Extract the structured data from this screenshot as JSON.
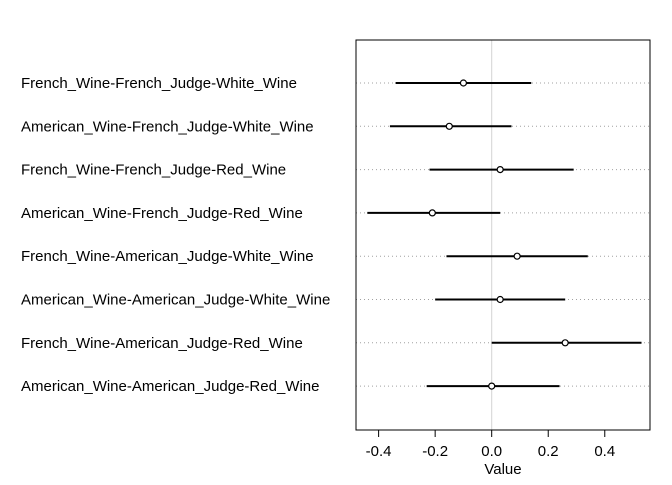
{
  "chart_data": {
    "type": "scatter",
    "subtype": "interval-dot-plot",
    "title": "",
    "xlabel": "Value",
    "ylabel": "",
    "xlim": [
      -0.48,
      0.56
    ],
    "xticks": [
      -0.4,
      -0.2,
      0.0,
      0.2,
      0.4
    ],
    "xtick_labels": [
      "-0.4",
      "-0.2",
      "0.0",
      "0.2",
      "0.4"
    ],
    "grid": "horizontal dotted guide per row, vertical line at 0",
    "legend": "none",
    "rows": [
      {
        "label": "French_Wine-French_Judge-White_Wine",
        "estimate": -0.1,
        "lower": -0.34,
        "upper": 0.14
      },
      {
        "label": "American_Wine-French_Judge-White_Wine",
        "estimate": -0.15,
        "lower": -0.36,
        "upper": 0.07
      },
      {
        "label": "French_Wine-French_Judge-Red_Wine",
        "estimate": 0.03,
        "lower": -0.22,
        "upper": 0.29
      },
      {
        "label": "American_Wine-French_Judge-Red_Wine",
        "estimate": -0.21,
        "lower": -0.44,
        "upper": 0.03
      },
      {
        "label": "French_Wine-American_Judge-White_Wine",
        "estimate": 0.09,
        "lower": -0.16,
        "upper": 0.34
      },
      {
        "label": "American_Wine-American_Judge-White_Wine",
        "estimate": 0.03,
        "lower": -0.2,
        "upper": 0.26
      },
      {
        "label": "French_Wine-American_Judge-Red_Wine",
        "estimate": 0.26,
        "lower": 0.0,
        "upper": 0.53
      },
      {
        "label": "American_Wine-American_Judge-Red_Wine",
        "estimate": 0.0,
        "lower": -0.23,
        "upper": 0.24
      }
    ],
    "colors": {
      "axis": "#000000",
      "interval": "#000000",
      "point": "#000000",
      "guide": "#a0a0a0",
      "zero_line": "#d3d3d3"
    }
  }
}
